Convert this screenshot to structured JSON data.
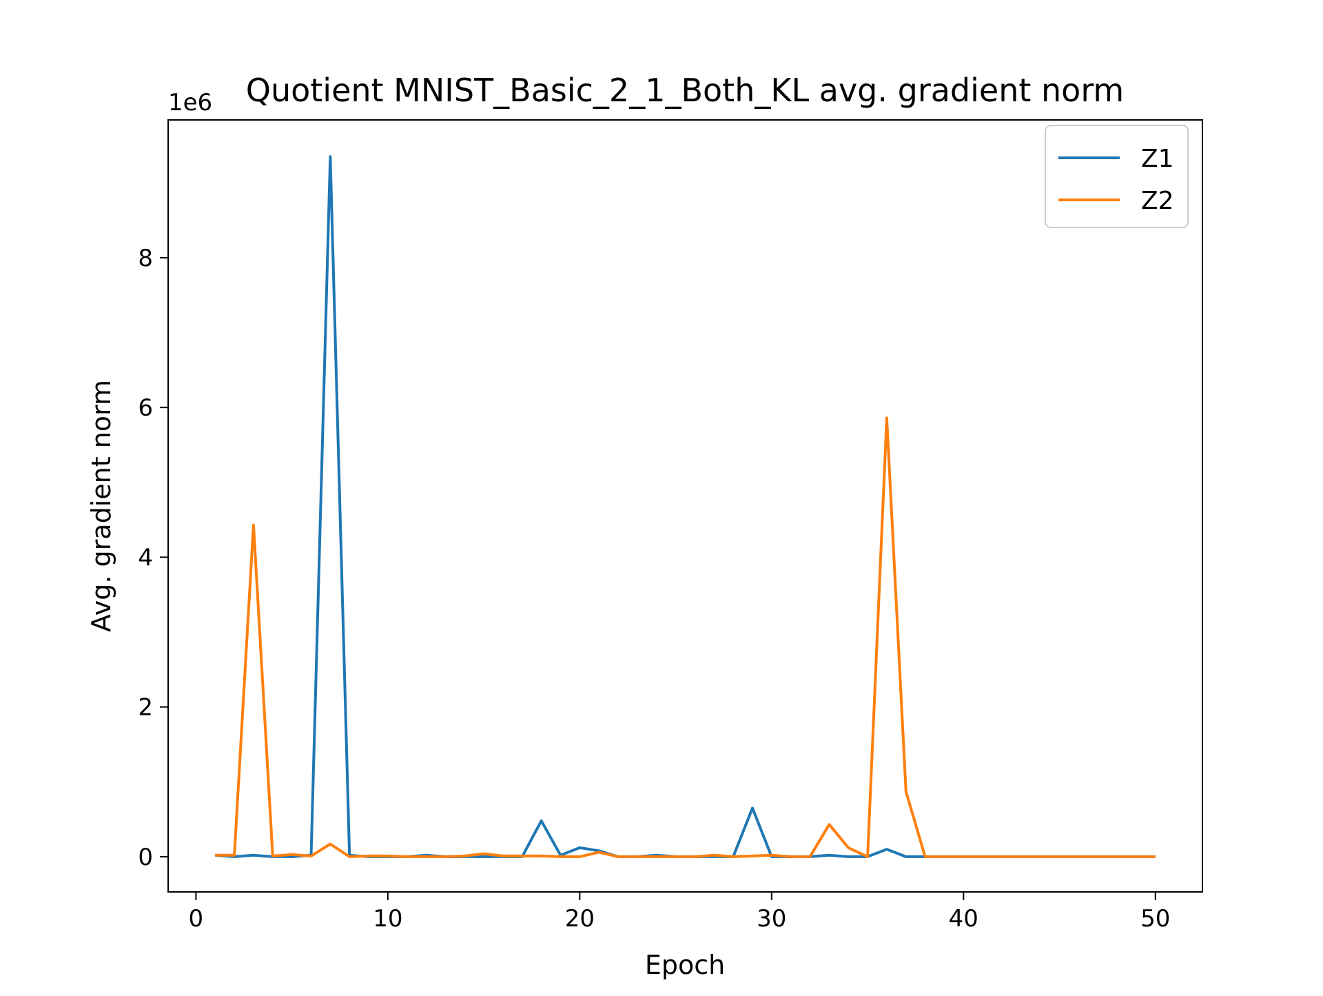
{
  "chart_data": {
    "type": "line",
    "title": "Quotient MNIST_Basic_2_1_Both_KL avg. gradient norm",
    "xlabel": "Epoch",
    "ylabel": "Avg. gradient norm",
    "y_offset_label": "1e6",
    "xlim": [
      -1.45,
      52.45
    ],
    "ylim": [
      -0.47,
      9.84
    ],
    "x_ticks": [
      0,
      10,
      20,
      30,
      40,
      50
    ],
    "y_ticks": [
      0,
      2,
      4,
      6,
      8
    ],
    "y_tick_labels": [
      "0",
      "2",
      "4",
      "6",
      "8"
    ],
    "grid": false,
    "legend_position": "top-right",
    "x": [
      1,
      2,
      3,
      4,
      5,
      6,
      7,
      8,
      9,
      10,
      11,
      12,
      13,
      14,
      15,
      16,
      17,
      18,
      19,
      20,
      21,
      22,
      23,
      24,
      25,
      26,
      27,
      28,
      29,
      30,
      31,
      32,
      33,
      34,
      35,
      36,
      37,
      38,
      39,
      40,
      41,
      42,
      43,
      44,
      45,
      46,
      47,
      48,
      49,
      50
    ],
    "series": [
      {
        "name": "Z1",
        "color": "#1f77b4",
        "values": [
          0.02,
          0.0,
          0.02,
          0.0,
          0.0,
          0.02,
          9.35,
          0.02,
          0.0,
          0.0,
          0.0,
          0.02,
          0.0,
          0.0,
          0.0,
          0.0,
          0.0,
          0.48,
          0.02,
          0.12,
          0.08,
          0.0,
          0.0,
          0.02,
          0.0,
          0.0,
          0.0,
          0.0,
          0.65,
          0.0,
          0.0,
          0.0,
          0.02,
          0.0,
          0.0,
          0.1,
          0.0,
          0.0,
          0.0,
          0.0,
          0.0,
          0.0,
          0.0,
          0.0,
          0.0,
          0.0,
          0.0,
          0.0,
          0.0,
          0.0
        ]
      },
      {
        "name": "Z2",
        "color": "#ff7f0e",
        "values": [
          0.02,
          0.02,
          4.43,
          0.01,
          0.03,
          0.01,
          0.17,
          0.0,
          0.01,
          0.01,
          0.0,
          0.0,
          0.0,
          0.01,
          0.04,
          0.01,
          0.01,
          0.01,
          0.0,
          0.0,
          0.06,
          0.0,
          0.0,
          0.0,
          0.0,
          0.0,
          0.02,
          0.0,
          0.01,
          0.02,
          0.0,
          0.0,
          0.43,
          0.12,
          0.0,
          5.86,
          0.87,
          0.0,
          0.0,
          0.0,
          0.0,
          0.0,
          0.0,
          0.0,
          0.0,
          0.0,
          0.0,
          0.0,
          0.0,
          0.0
        ]
      }
    ]
  }
}
